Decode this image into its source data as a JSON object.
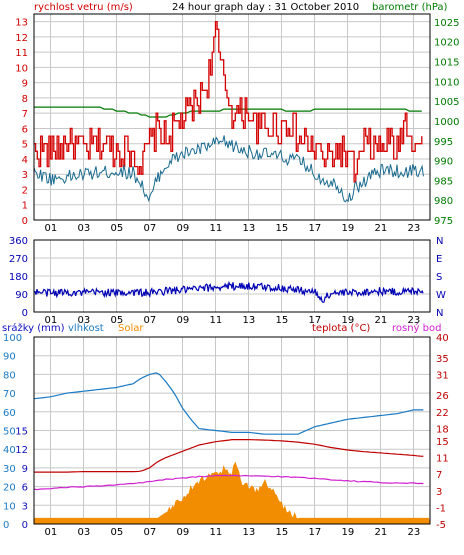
{
  "header": {
    "left_label": "rychlost vetru (m/s)",
    "title": "24 hour graph day : 31 October 2010",
    "right_label": "barometr (hPa)"
  },
  "colors": {
    "wind": "#d40000",
    "wind_avg": "#1a6b8f",
    "pressure": "#007a00",
    "direction": "#0000b4",
    "humidity": "#1a7ac4",
    "solar": "#f28c00",
    "temperature": "#c00000",
    "dewpoint": "#d020d0",
    "rain": "#1010c0",
    "grid": "#c8c8c8",
    "frame": "#000000"
  },
  "chart_data": [
    {
      "type": "line",
      "title": "24 hour graph day : 31 October 2010",
      "xlabel": "",
      "x_ticks": [
        "01",
        "03",
        "05",
        "07",
        "09",
        "11",
        "13",
        "15",
        "17",
        "19",
        "21",
        "23"
      ],
      "x_range_hours": [
        0,
        24
      ],
      "y_left_label": "rychlost vetru (m/s)",
      "y_left_ticks": [
        0,
        1,
        2,
        3,
        4,
        5,
        6,
        7,
        8,
        9,
        10,
        11,
        12,
        13
      ],
      "y_left_range": [
        0,
        13.5
      ],
      "y_right_label": "barometr (hPa)",
      "y_right_ticks": [
        975,
        980,
        985,
        990,
        995,
        1000,
        1005,
        1010,
        1015,
        1020,
        1025
      ],
      "y_right_range": [
        975,
        1027
      ],
      "grid": true,
      "series": [
        {
          "name": "gust",
          "axis": "left",
          "x": [
            0,
            1,
            2,
            3,
            4,
            5,
            6,
            6.5,
            7,
            7.5,
            8,
            8.5,
            9,
            9.5,
            10,
            10.5,
            11,
            11.3,
            11.7,
            12,
            12.5,
            13,
            13.5,
            14,
            14.5,
            15,
            15.5,
            16,
            16.5,
            17,
            17.5,
            18,
            18.5,
            19,
            19.5,
            20,
            20.5,
            21,
            21.5,
            22,
            22.5,
            23,
            23.5
          ],
          "y": [
            4.5,
            4.5,
            5,
            4.5,
            5,
            4.5,
            4.5,
            3.5,
            5,
            6,
            5,
            6,
            6.5,
            7,
            8,
            9,
            12.5,
            10,
            8.5,
            7,
            7,
            7,
            6,
            6,
            6,
            6,
            6.5,
            5,
            5,
            4.5,
            4,
            4,
            4.5,
            4,
            3,
            5,
            4.5,
            4.5,
            5,
            4.5,
            6.5,
            5,
            5
          ]
        },
        {
          "name": "average",
          "axis": "left",
          "x": [
            0,
            1,
            2,
            3,
            4,
            5,
            6,
            6.5,
            7,
            7.5,
            8,
            8.5,
            9,
            9.5,
            10,
            10.5,
            11,
            11.5,
            12,
            12.5,
            13,
            13.5,
            14,
            14.5,
            15,
            15.5,
            16,
            16.5,
            17,
            17.5,
            18,
            18.5,
            19,
            19.5,
            20,
            20.5,
            21,
            21.5,
            22,
            22.5,
            23,
            23.5
          ],
          "y": [
            3.2,
            2.7,
            2.8,
            3,
            3.1,
            3.2,
            3.1,
            2.4,
            1.2,
            2.8,
            3.6,
            4,
            4.3,
            4.5,
            4.6,
            4.8,
            5,
            5.1,
            4.9,
            4.6,
            4.5,
            4.4,
            4.3,
            4.2,
            4.1,
            4,
            3.9,
            3.6,
            3,
            2.7,
            2.5,
            2.2,
            1.3,
            2.1,
            2.5,
            3,
            3.2,
            3.3,
            3.2,
            3.1,
            3.3,
            3.2
          ]
        },
        {
          "name": "pressure",
          "axis": "right",
          "x": [
            0,
            2,
            4,
            6,
            7,
            8,
            9,
            10,
            11,
            12,
            13,
            14,
            16,
            18,
            20,
            22,
            23,
            23.5
          ],
          "y": [
            1003.5,
            1003.5,
            1003.3,
            1002,
            1001,
            1001.2,
            1002,
            1002.5,
            1002.7,
            1002.8,
            1002.8,
            1002.8,
            1002.7,
            1002.8,
            1003,
            1003.2,
            1002.5,
            1002.4
          ]
        }
      ]
    },
    {
      "type": "scatter",
      "title": "",
      "xlabel": "",
      "x_ticks": [
        "01",
        "03",
        "05",
        "07",
        "09",
        "11",
        "13",
        "15",
        "17",
        "19",
        "21",
        "23"
      ],
      "x_range_hours": [
        0,
        24
      ],
      "y_left_ticks": [
        0,
        90,
        180,
        270,
        360
      ],
      "y_left_range": [
        0,
        360
      ],
      "y_right_ticks": [
        "N",
        "W",
        "S",
        "E",
        "N"
      ],
      "grid": true,
      "series": [
        {
          "name": "direction",
          "x": [
            0,
            1,
            2,
            3,
            4,
            5,
            6,
            7,
            8,
            9,
            10,
            11,
            12,
            13,
            14,
            15,
            16,
            17,
            17.5,
            18,
            19,
            20,
            21,
            22,
            23,
            23.5
          ],
          "y": [
            100,
            95,
            100,
            95,
            100,
            95,
            100,
            95,
            105,
            110,
            115,
            125,
            130,
            130,
            125,
            120,
            110,
            100,
            60,
            95,
            95,
            100,
            105,
            100,
            105,
            110
          ]
        }
      ]
    },
    {
      "type": "line",
      "title": "",
      "xlabel": "",
      "x_ticks": [
        "01",
        "03",
        "05",
        "07",
        "09",
        "11",
        "13",
        "15",
        "17",
        "19",
        "21",
        "23"
      ],
      "x_range_hours": [
        0,
        24
      ],
      "header_labels": {
        "rain": "srážky (mm)",
        "humidity": "vlhkost",
        "solar": "Solar",
        "temperature": "teplota (°C)",
        "dewpoint": "rosný bod"
      },
      "y_left_ticks": [
        0,
        10,
        20,
        30,
        40,
        50,
        60,
        70,
        80,
        90,
        100
      ],
      "y_left_ticks_second": [
        0,
        3,
        6,
        9,
        12,
        15
      ],
      "y_left_range": [
        0,
        100
      ],
      "y_right_ticks": [
        -5,
        -1,
        3,
        7,
        11,
        15,
        18,
        22,
        26,
        31,
        35,
        40
      ],
      "y_right_range": [
        -5,
        40
      ],
      "grid": true,
      "series": [
        {
          "name": "humidity",
          "x": [
            0,
            1,
            2,
            3,
            4,
            5,
            6,
            6.5,
            7,
            7.5,
            8,
            8.5,
            9,
            9.5,
            10,
            11,
            12,
            13,
            14,
            15,
            16,
            17,
            18,
            19,
            20,
            21,
            22,
            23,
            23.5
          ],
          "y": [
            67,
            68,
            70,
            71,
            72,
            73,
            75,
            78,
            80,
            81,
            76,
            70,
            62,
            56,
            51,
            50,
            49,
            49,
            48,
            48,
            48,
            52,
            54,
            56,
            57,
            58,
            59,
            61,
            61
          ]
        },
        {
          "name": "temperature",
          "x": [
            0,
            1,
            2,
            3,
            4,
            5,
            6,
            6.5,
            7,
            7.5,
            8,
            9,
            10,
            11,
            12,
            13,
            14,
            15,
            16,
            17,
            18,
            19,
            20,
            21,
            22,
            23,
            23.5
          ],
          "y": [
            7.5,
            7.5,
            7.5,
            7.6,
            7.6,
            7.6,
            7.6,
            7.7,
            8.5,
            10,
            11,
            12.5,
            14,
            14.8,
            15.3,
            15.3,
            15.2,
            15,
            14.7,
            14.2,
            13.4,
            12.8,
            12.4,
            12.1,
            11.8,
            11.5,
            11.3
          ]
        },
        {
          "name": "dewpoint",
          "x": [
            0,
            1,
            2,
            3,
            4,
            5,
            6,
            7,
            8,
            9,
            10,
            11,
            12,
            13,
            14,
            15,
            16,
            17,
            18,
            19,
            20,
            21,
            22,
            23,
            23.5
          ],
          "y": [
            3.3,
            3.5,
            3.8,
            4,
            4.1,
            4.4,
            4.7,
            5.2,
            5.7,
            6.1,
            6.4,
            6.6,
            6.6,
            6.6,
            6.5,
            6.4,
            6.2,
            6,
            5.7,
            5.4,
            5.2,
            5,
            4.9,
            4.8,
            4.8
          ]
        },
        {
          "name": "solar",
          "x": [
            0,
            7.5,
            8,
            8.5,
            9,
            9.5,
            10,
            10.5,
            11,
            11.3,
            11.5,
            12,
            12.2,
            12.5,
            13,
            13.5,
            14,
            14.5,
            15,
            15.5,
            16,
            24
          ],
          "y": [
            3,
            3,
            6,
            10,
            14,
            18,
            22,
            26,
            29,
            26,
            30,
            27,
            33,
            23,
            20,
            17,
            22,
            17,
            10,
            6,
            3,
            3
          ]
        }
      ]
    }
  ]
}
